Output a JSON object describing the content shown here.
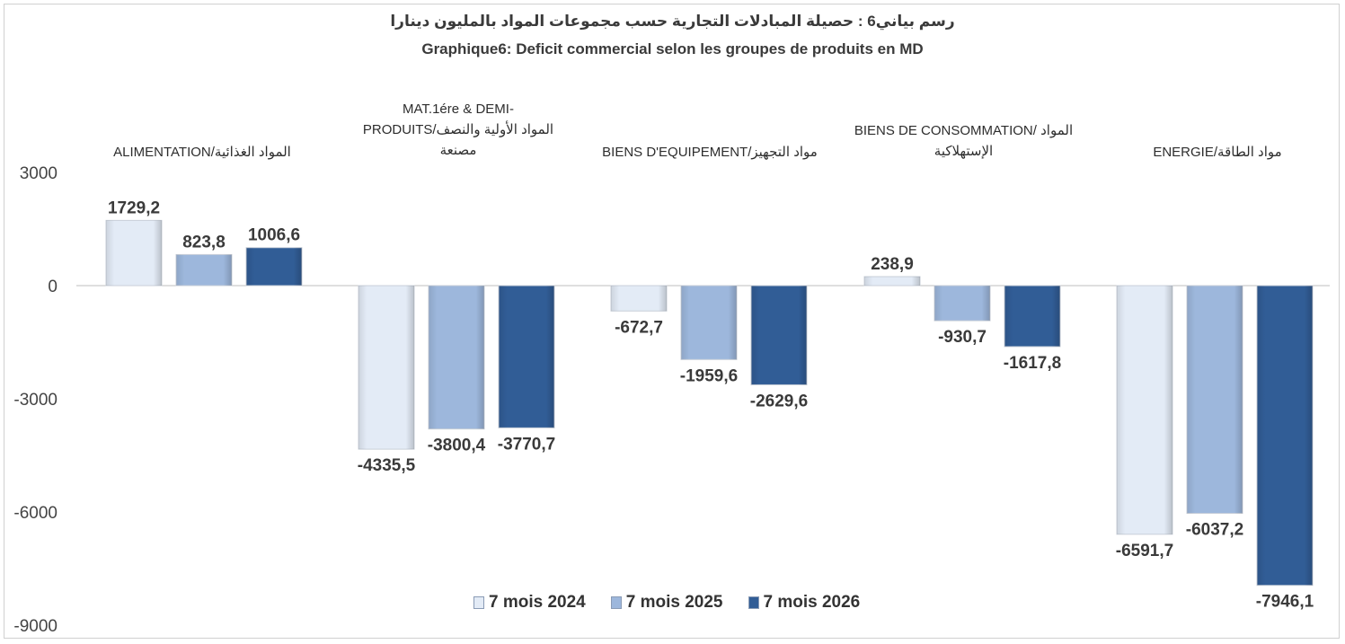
{
  "chart_data": {
    "type": "bar",
    "title_ar": "رسم بياني6 : حصيلة المبادلات التجارية حسب مجموعات المواد بالمليون دينارا",
    "title": "Graphique6: Deficit commercial selon les groupes de produits en MD",
    "categories": [
      {
        "lines": [
          "ALIMENTATION/المواد الغذائية"
        ]
      },
      {
        "lines": [
          "MAT.1ére & DEMI-",
          "PRODUITS/المواد الأولية والنصف",
          "مصنعة"
        ]
      },
      {
        "lines": [
          "BIENS D'EQUIPEMENT/مواد التجهيز"
        ]
      },
      {
        "lines": [
          "BIENS DE CONSOMMATION/ المواد",
          "الإستهلاكية"
        ]
      },
      {
        "lines": [
          "ENERGIE/مواد الطاقة"
        ]
      }
    ],
    "series": [
      {
        "name": "7 mois 2024",
        "color": "#e3ebf6",
        "values": [
          1729.2,
          -4335.5,
          -672.7,
          238.9,
          -6591.7
        ],
        "labels": [
          "1729,2",
          "-4335,5",
          "-672,7",
          "238,9",
          "-6591,7"
        ]
      },
      {
        "name": "7 mois 2025",
        "color": "#9db7dc",
        "values": [
          823.8,
          -3800.4,
          -1959.6,
          -930.7,
          -6037.2
        ],
        "labels": [
          "823,8",
          "-3800,4",
          "-1959,6",
          "-930,7",
          "-6037,2"
        ]
      },
      {
        "name": "7 mois 2026",
        "color": "#315d96",
        "values": [
          1006.6,
          -3770.7,
          -2629.6,
          -1617.8,
          -7946.1
        ],
        "labels": [
          "1006,6",
          "-3770,7",
          "-2629,6",
          "-1617,8",
          "-7946,1"
        ]
      }
    ],
    "y_ticks": [
      "3000",
      "0",
      "-3000",
      "-6000",
      "-9000"
    ],
    "y_tick_values": [
      3000,
      0,
      -3000,
      -6000,
      -9000
    ],
    "ylim": [
      -9000,
      3000
    ],
    "legend_position": "bottom",
    "grid": false
  }
}
